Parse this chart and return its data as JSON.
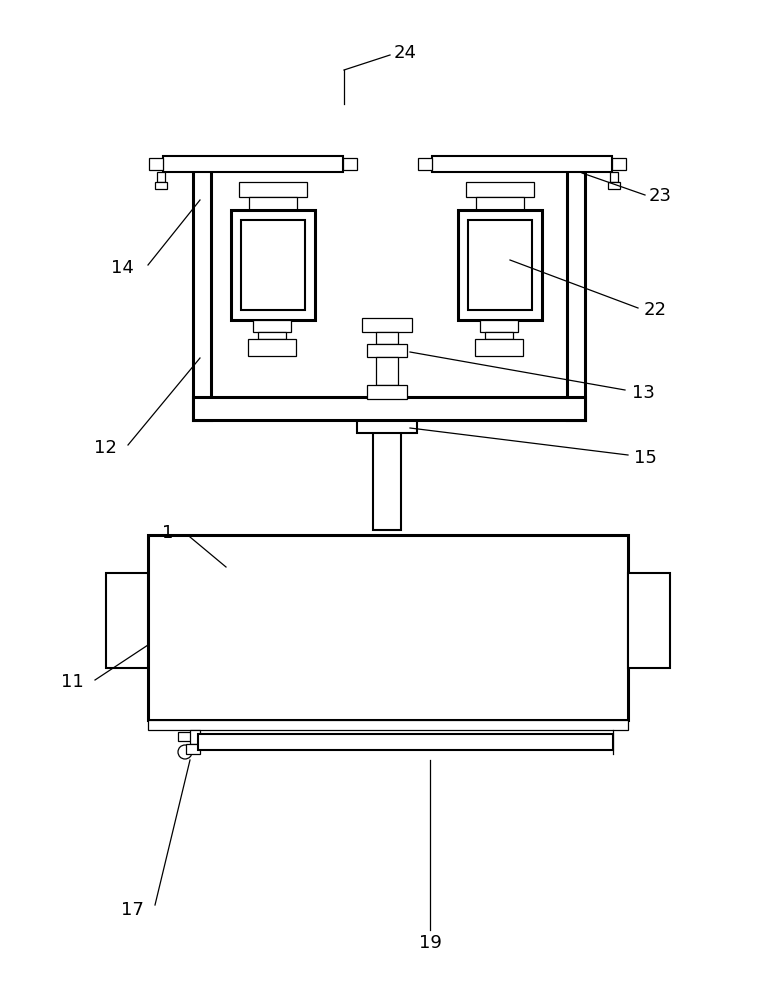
{
  "bg_color": "#ffffff",
  "line_color": "#000000",
  "lw": 1.5,
  "lw_thick": 2.2,
  "lw_thin": 0.9,
  "fig_width": 7.75,
  "fig_height": 10.0
}
